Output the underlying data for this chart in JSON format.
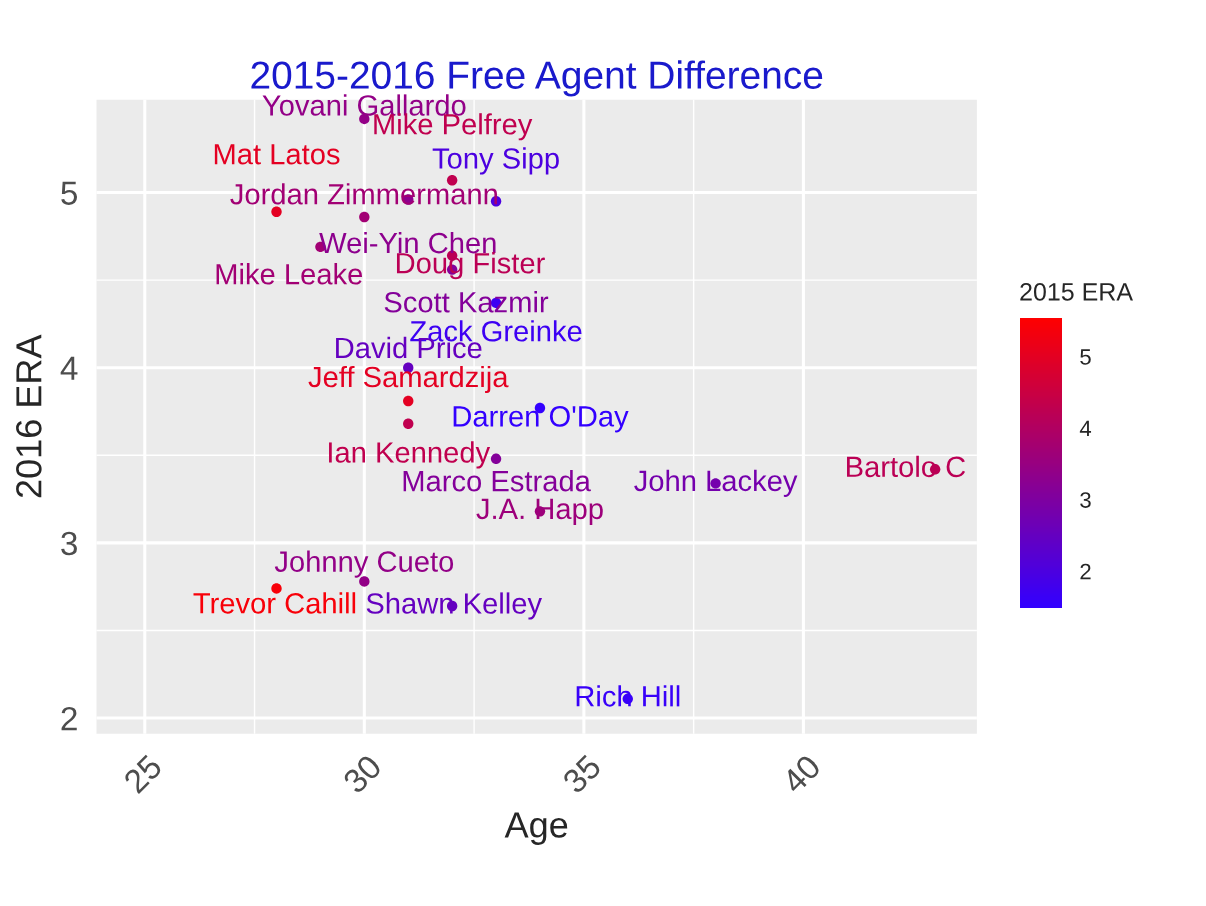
{
  "chart_data": {
    "type": "scatter",
    "title": "2015-2016 Free Agent Difference",
    "xlabel": "Age",
    "ylabel": "2016 ERA",
    "clabel": "2015 ERA",
    "x": [
      30,
      32,
      31,
      33,
      28,
      30,
      29,
      32,
      32,
      33,
      31,
      31,
      34,
      31,
      33,
      38,
      43,
      34,
      30,
      28,
      32,
      36
    ],
    "values": [
      5.42,
      5.07,
      4.96,
      4.95,
      4.89,
      4.86,
      4.69,
      4.64,
      4.56,
      4.37,
      4.0,
      3.81,
      3.77,
      3.68,
      3.48,
      3.34,
      3.42,
      3.18,
      2.78,
      2.74,
      2.64,
      2.11
    ],
    "cvalues": [
      3.4,
      4.3,
      3.3,
      2.0,
      5.0,
      3.7,
      3.7,
      4.2,
      3.1,
      1.7,
      2.5,
      5.0,
      1.5,
      4.3,
      3.1,
      2.8,
      4.2,
      3.6,
      3.4,
      5.4,
      2.5,
      1.6
    ],
    "annotations": [
      {
        "text": "Yovani Gallardo",
        "x": 30,
        "y": 5.42
      },
      {
        "text": "Mike Pelfrey",
        "x": 32,
        "y": 5.07
      },
      {
        "text": "Wei-Yin Chen",
        "x": 31,
        "y": 4.96
      },
      {
        "text": "Tony Sipp",
        "x": 33,
        "y": 4.95
      },
      {
        "text": "Mat Latos",
        "x": 28,
        "y": 4.89
      },
      {
        "text": "Jordan Zimmermann",
        "x": 30,
        "y": 4.86
      },
      {
        "text": "Mike Leake",
        "x": 29,
        "y": 4.69
      },
      {
        "text": "Doug Fister",
        "x": 32,
        "y": 4.64
      },
      {
        "text": "Scott Kazmir",
        "x": 32,
        "y": 4.56
      },
      {
        "text": "Zack Greinke",
        "x": 33,
        "y": 4.37
      },
      {
        "text": "David Price",
        "x": 31,
        "y": 4.0
      },
      {
        "text": "Jeff Samardzija",
        "x": 31,
        "y": 3.81
      },
      {
        "text": "Darren O'Day",
        "x": 34,
        "y": 3.77
      },
      {
        "text": "Ian Kennedy",
        "x": 31,
        "y": 3.68
      },
      {
        "text": "Marco Estrada",
        "x": 33,
        "y": 3.48
      },
      {
        "text": "John Lackey",
        "x": 38,
        "y": 3.34
      },
      {
        "text": "Bartolo C",
        "x": 43,
        "y": 3.42
      },
      {
        "text": "J.A. Happ",
        "x": 34,
        "y": 3.18
      },
      {
        "text": "Johnny Cueto",
        "x": 30,
        "y": 2.78
      },
      {
        "text": "Trevor Cahill",
        "x": 28,
        "y": 2.74
      },
      {
        "text": "Shawn Kelley",
        "x": 32,
        "y": 2.64
      },
      {
        "text": "Rich Hill",
        "x": 36,
        "y": 2.11
      }
    ],
    "xlim": [
      23.9,
      43.95
    ],
    "ylim": [
      1.91,
      5.53
    ],
    "xticks": [
      25,
      30,
      35,
      40
    ],
    "yticks": [
      2,
      3,
      4,
      5
    ],
    "clim": [
      1.5,
      5.55
    ],
    "cticks": [
      2,
      3,
      4,
      5
    ],
    "grid": true,
    "marker": "circle"
  }
}
